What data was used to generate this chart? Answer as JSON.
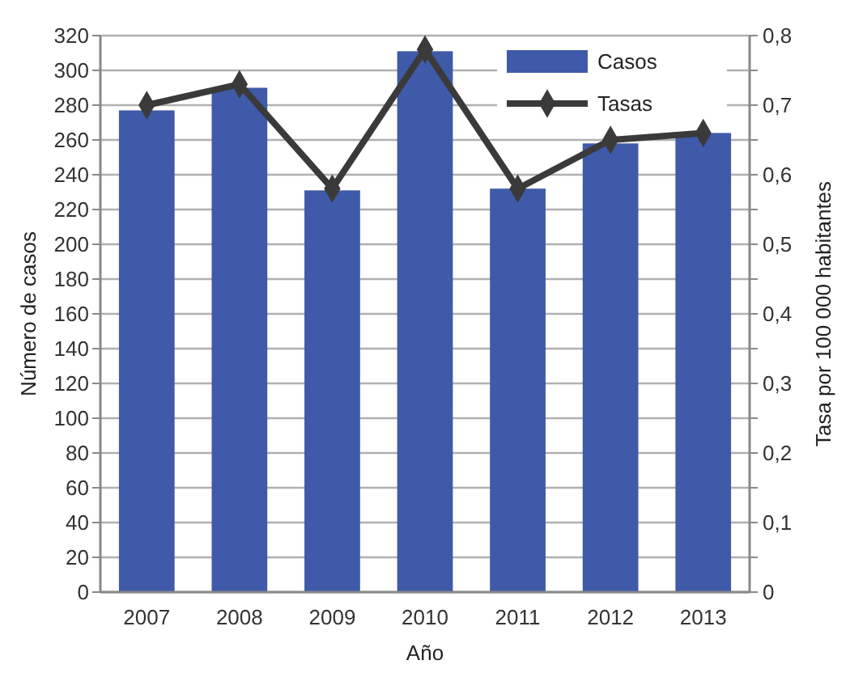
{
  "chart_data": {
    "type": "bar",
    "xlabel": "Año",
    "ylabel": "Número de casos",
    "y2label": "Tasa por 100 000 habitantes",
    "categories": [
      "2007",
      "2008",
      "2009",
      "2010",
      "2011",
      "2012",
      "2013"
    ],
    "series": [
      {
        "name": "Casos",
        "color": "#3f5aa8",
        "values": [
          277,
          290,
          231,
          311,
          232,
          258,
          264
        ]
      },
      {
        "name": "Tasas",
        "type": "line",
        "axis": "y2",
        "color": "#3a3a3a",
        "marker": "diamond",
        "values": [
          0.7,
          0.73,
          0.58,
          0.78,
          0.58,
          0.65,
          0.66
        ]
      }
    ],
    "ylim": [
      0,
      320
    ],
    "yticks": [
      0,
      20,
      40,
      60,
      80,
      100,
      120,
      140,
      160,
      180,
      200,
      220,
      240,
      260,
      280,
      300,
      320
    ],
    "y2lim": [
      0,
      0.8
    ],
    "y2ticks": [
      {
        "value": 0,
        "label": "0"
      },
      {
        "value": 0.05,
        "label": null
      },
      {
        "value": 0.1,
        "label": "0,1"
      },
      {
        "value": 0.15,
        "label": null
      },
      {
        "value": 0.2,
        "label": "0,2"
      },
      {
        "value": 0.25,
        "label": null
      },
      {
        "value": 0.3,
        "label": "0,3"
      },
      {
        "value": 0.35,
        "label": null
      },
      {
        "value": 0.4,
        "label": "0,4"
      },
      {
        "value": 0.45,
        "label": null
      },
      {
        "value": 0.5,
        "label": "0,5"
      },
      {
        "value": 0.55,
        "label": null
      },
      {
        "value": 0.6,
        "label": "0,6"
      },
      {
        "value": 0.65,
        "label": null
      },
      {
        "value": 0.7,
        "label": "0,7"
      },
      {
        "value": 0.75,
        "label": null
      },
      {
        "value": 0.8,
        "label": "0,8"
      }
    ],
    "grid": "y",
    "legend": "top right"
  }
}
